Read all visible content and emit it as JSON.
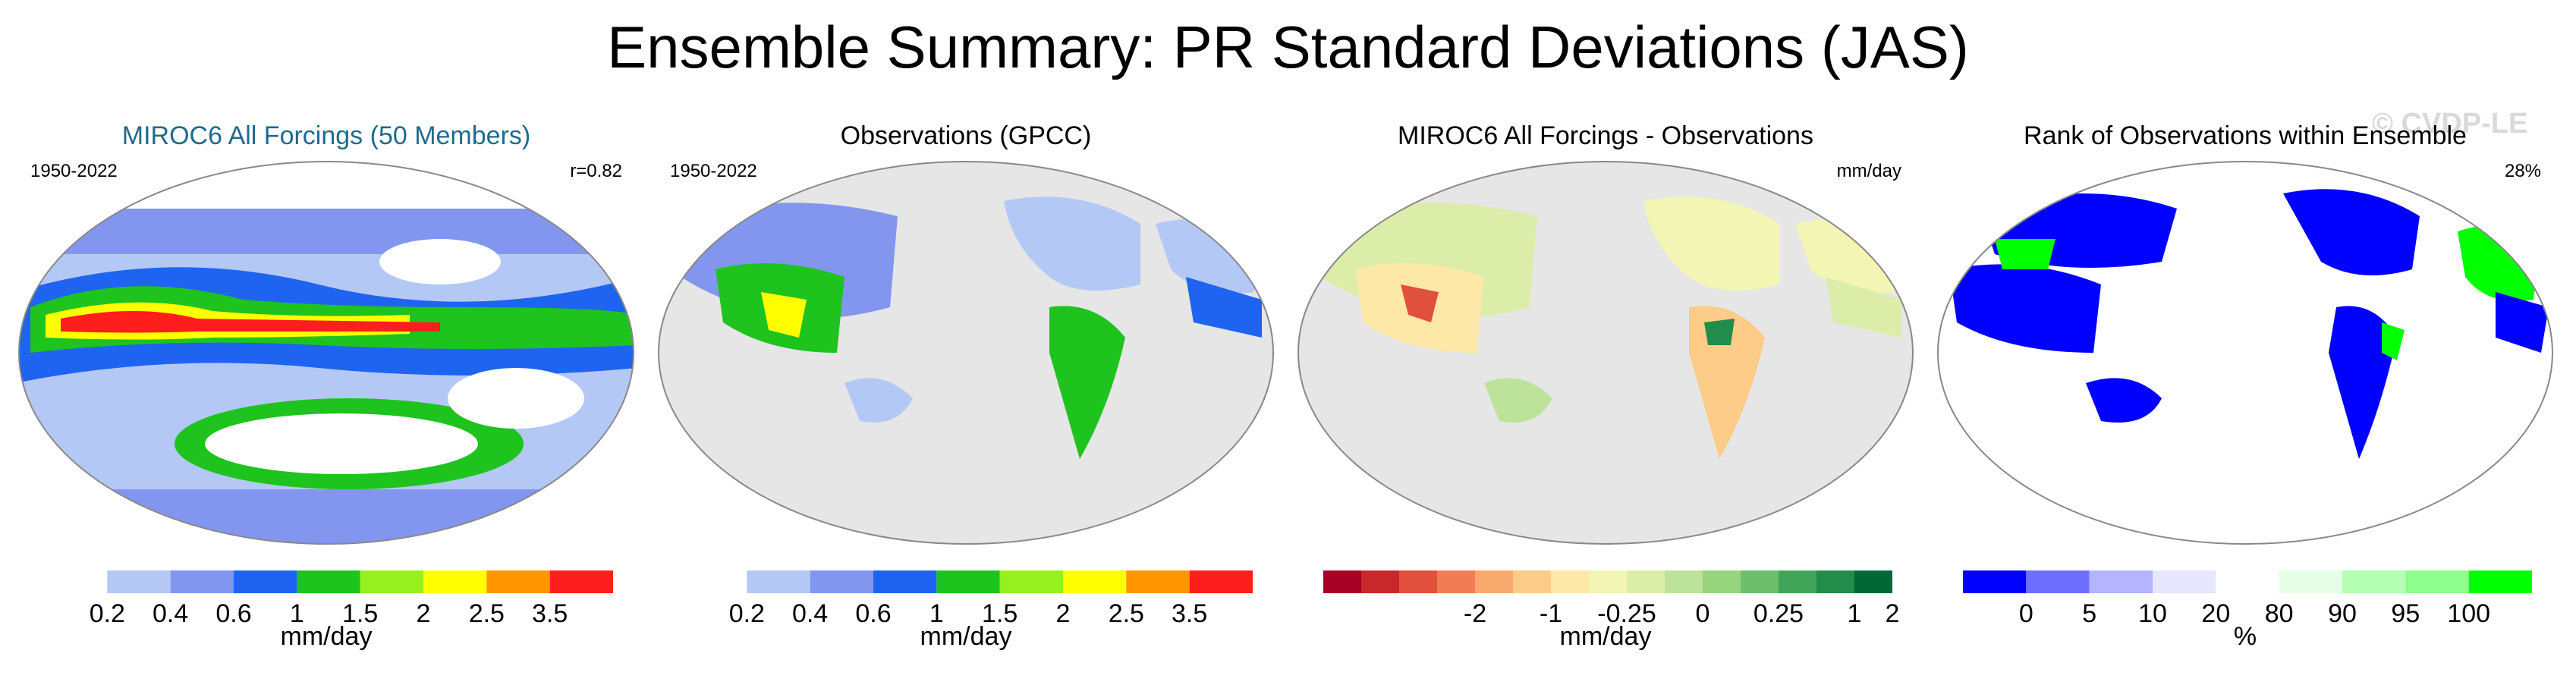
{
  "title": "Ensemble Summary: PR Standard Deviations (JAS)",
  "watermark": "© CVDP-LE",
  "panels": [
    {
      "title": "MIROC6 All Forcings (50 Members)",
      "left_note": "1950-2022",
      "right_note": "r=0.82"
    },
    {
      "title": "Observations (GPCC)",
      "left_note": "1950-2022",
      "right_note": ""
    },
    {
      "title": "MIROC6 All Forcings - Observations",
      "left_note": "",
      "right_note": "mm/day"
    },
    {
      "title": "Rank of Observations within Ensemble",
      "left_note": "",
      "right_note": "28%"
    }
  ],
  "colorbars": [
    {
      "colors": [
        "#ffffff",
        "#b4c8f5",
        "#8296f0",
        "#1e64f0",
        "#1ec31e",
        "#96f01e",
        "#ffff00",
        "#ff9600",
        "#ff1e1e"
      ],
      "ticks": [
        "0.2",
        "0.4",
        "0.6",
        "1",
        "1.5",
        "2",
        "2.5",
        "3.5"
      ],
      "label": "mm/day"
    },
    {
      "colors": [
        "#ffffff",
        "#b4c8f5",
        "#8296f0",
        "#1e64f0",
        "#1ec31e",
        "#96f01e",
        "#ffff00",
        "#ff9600",
        "#ff1e1e"
      ],
      "ticks": [
        "0.2",
        "0.4",
        "0.6",
        "1",
        "1.5",
        "2",
        "2.5",
        "3.5"
      ],
      "label": "mm/day"
    },
    {
      "colors": [
        "#a50026",
        "#c8282a",
        "#e0503c",
        "#f07d55",
        "#f8aa6e",
        "#fccc88",
        "#fde8a8",
        "#f2f5b4",
        "#dcedaa",
        "#bde39a",
        "#96d47e",
        "#6ebe6e",
        "#41a55a",
        "#238c4b",
        "#006837"
      ],
      "ticks": [
        "-2",
        "-1",
        "-0.25",
        "0",
        "0.25",
        "1",
        "2"
      ],
      "label": "mm/day"
    },
    {
      "colors": [
        "#0000ff",
        "#6e6eff",
        "#b4b4ff",
        "#e6e6ff",
        "#ffffff",
        "#e6ffe6",
        "#b4ffb4",
        "#8cff8c",
        "#00ff00"
      ],
      "ticks": [
        "0",
        "5",
        "10",
        "20",
        "80",
        "90",
        "95",
        "100"
      ],
      "label": "%"
    }
  ]
}
